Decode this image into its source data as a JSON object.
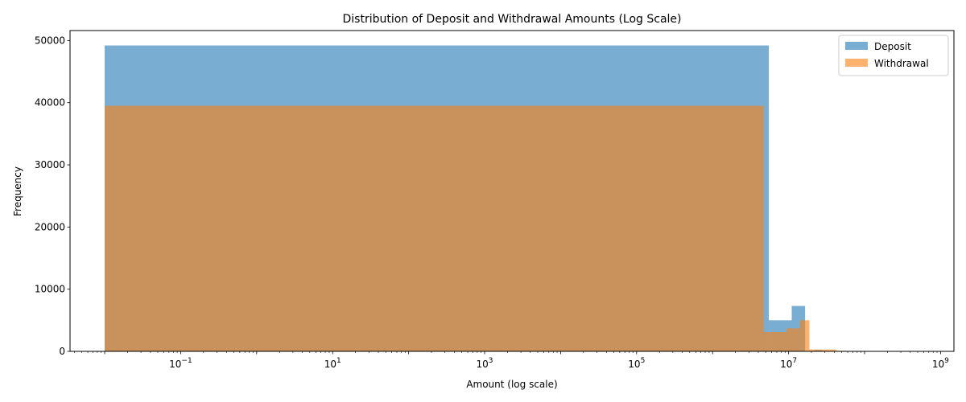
{
  "chart_data": {
    "type": "bar",
    "title": "Distribution of Deposit and Withdrawal Amounts (Log Scale)",
    "xlabel": "Amount (log scale)",
    "ylabel": "Frequency",
    "xscale": "log",
    "xlim": [
      0.0035,
      1500000000
    ],
    "ylim": [
      0,
      51600
    ],
    "grid": false,
    "legend_position": "top-right",
    "x_ticks": [
      {
        "value": 0.1,
        "base": "10",
        "exp": "−1"
      },
      {
        "value": 10,
        "base": "10",
        "exp": "1"
      },
      {
        "value": 1000,
        "base": "10",
        "exp": "3"
      },
      {
        "value": 100000,
        "base": "10",
        "exp": "5"
      },
      {
        "value": 10000000,
        "base": "10",
        "exp": "7"
      },
      {
        "value": 1000000000,
        "base": "10",
        "exp": "9"
      }
    ],
    "y_ticks": [
      0,
      10000,
      20000,
      30000,
      40000,
      50000
    ],
    "series": [
      {
        "name": "Deposit",
        "color": "#1f77b4",
        "alpha": 0.6,
        "bins": [
          {
            "x0": 0.01,
            "x1": 5500000,
            "count": 49200
          },
          {
            "x0": 5500000,
            "x1": 11000000,
            "count": 5000
          },
          {
            "x0": 11000000,
            "x1": 16500000,
            "count": 7300
          },
          {
            "x0": 16500000,
            "x1": 22000000,
            "count": 0
          },
          {
            "x0": 22000000,
            "x1": 27500000,
            "count": 200
          },
          {
            "x0": 27500000,
            "x1": 55000000,
            "count": 0
          },
          {
            "x0": 55000000,
            "x1": 825000000,
            "count": 0
          }
        ]
      },
      {
        "name": "Withdrawal",
        "color": "#ff7f0e",
        "alpha": 0.6,
        "bins": [
          {
            "x0": 0.01,
            "x1": 4700000,
            "count": 39500
          },
          {
            "x0": 4700000,
            "x1": 9400000,
            "count": 3100
          },
          {
            "x0": 9400000,
            "x1": 14100000,
            "count": 3700
          },
          {
            "x0": 14100000,
            "x1": 18800000,
            "count": 5000
          },
          {
            "x0": 18800000,
            "x1": 42300000,
            "count": 300
          },
          {
            "x0": 42300000,
            "x1": 56400000,
            "count": 100
          }
        ]
      }
    ]
  }
}
